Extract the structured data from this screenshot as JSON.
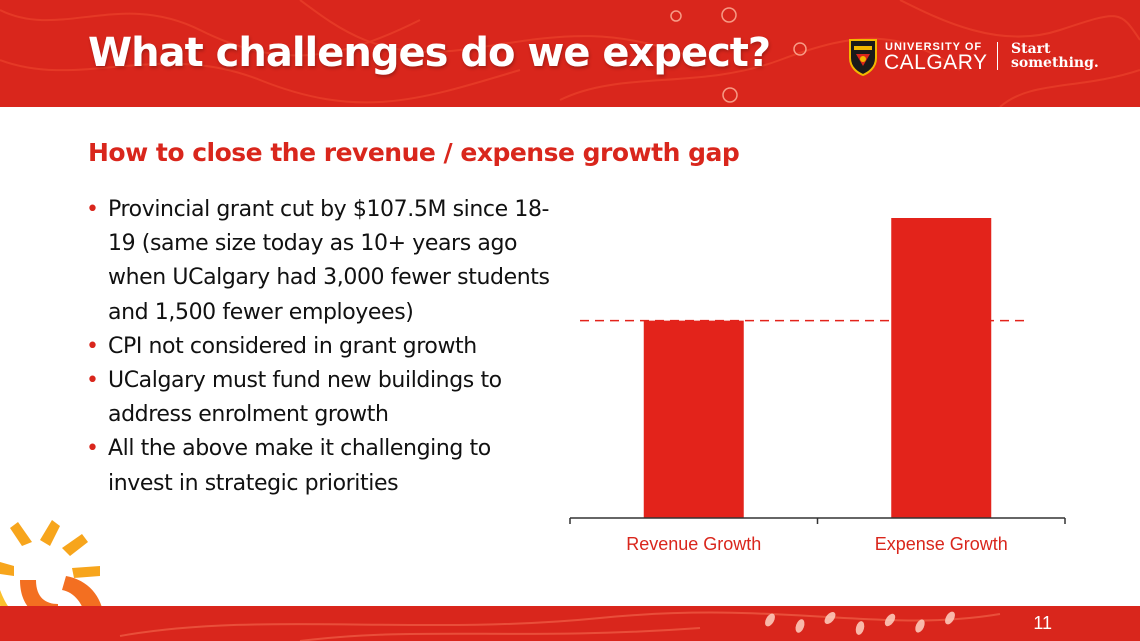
{
  "slide": {
    "title": "What challenges do we expect?",
    "subtitle": "How to close the revenue / expense growth gap",
    "page_number": "11"
  },
  "logo": {
    "line1": "UNIVERSITY OF",
    "line2": "CALGARY",
    "tagline1": "Start",
    "tagline2": "something."
  },
  "bullets": [
    {
      "text": "Provincial grant cut by $107.5M since 18-19 (same size today as 10+ years ago when UCalgary had 3,000 fewer students and 1,500 fewer employees)"
    },
    {
      "text": "CPI not considered in grant growth"
    },
    {
      "text": "UCalgary must fund new buildings to address enrolment growth"
    },
    {
      "text": "All the above make it challenging to invest in strategic priorities"
    }
  ],
  "colors": {
    "brand_red": "#d9261c",
    "bar": "#e3231b",
    "header_text": "#ffffff",
    "bullet_marker": "#d9261c"
  },
  "icons": {
    "bullet": "bullet-dot-icon",
    "crest": "calgary-crest-icon",
    "brandmark": "uc-sunburst-logo-icon"
  },
  "chart_data": {
    "type": "bar",
    "categories": [
      "Revenue Growth",
      "Expense Growth"
    ],
    "values": [
      1.0,
      1.52
    ],
    "reference_line": 1.0,
    "reference_line_style": "dashed",
    "ylim": [
      0,
      1.52
    ],
    "title": "",
    "xlabel": "",
    "ylabel": "",
    "grid": false,
    "legend": "none"
  }
}
